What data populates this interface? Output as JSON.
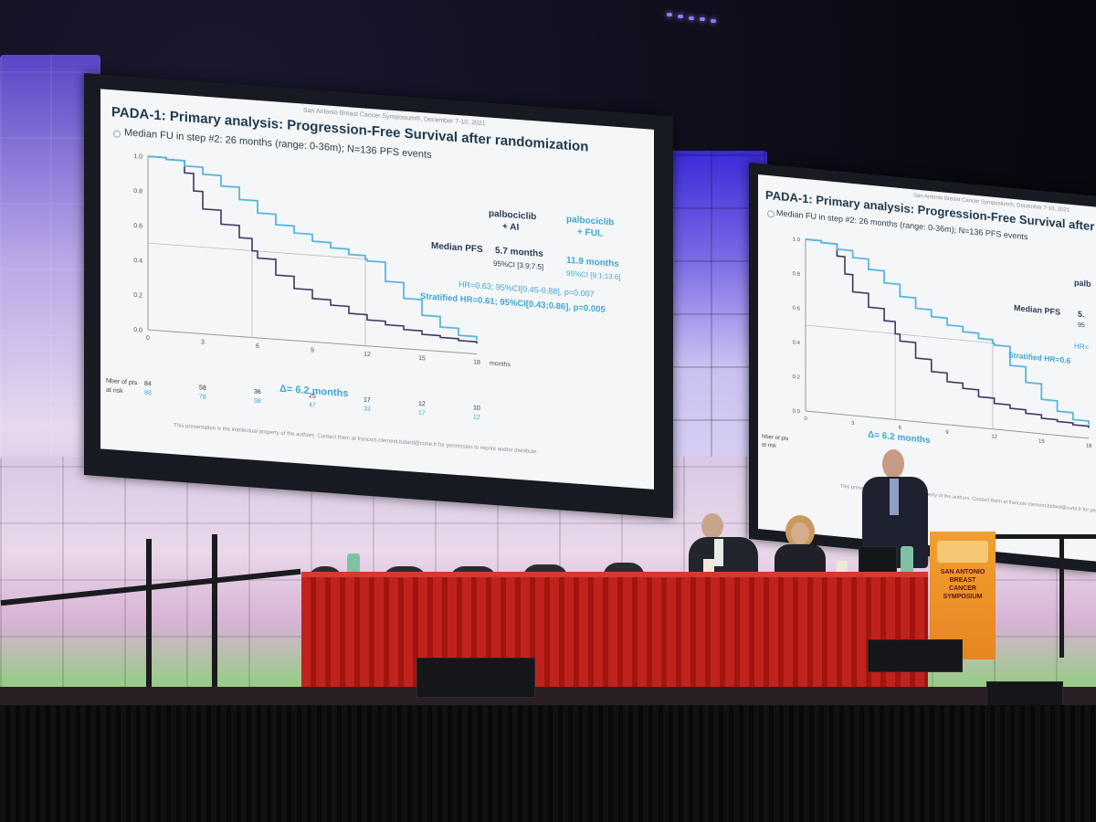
{
  "slide": {
    "header": "San Antonio Breast Cancer Symposium®, December 7-10, 2021",
    "title": "PADA-1: Primary analysis: Progression-Free Survival after randomization",
    "title_short": "PADA-1: Primary analysis: Progression-Free Survival after ra",
    "bullet": "Median FU in step #2: 26 months (range: 0-36m); N=136 PFS events",
    "col1_header": "palbociclib",
    "col1_header2": "+ AI",
    "col2_header": "palbociclib",
    "col2_header2": "+ FUL",
    "median_label": "Median PFS",
    "col1_median": "5.7 months",
    "col1_ci": "95%CI [3.9;7.5]",
    "col2_median": "11.9 months",
    "col2_ci": "95%CI [9.1;13.6]",
    "hr": "HR=0.63; 95%CI[0.45-0.88], p=0.007",
    "stratified_hr": "Stratified HR=0.61; 95%CI[0.43;0.86], p=0.005",
    "delta": "Δ= 6.2 months",
    "at_risk_label1": "Nber of pts",
    "at_risk_label2": "at risk",
    "footer": "This presentation is the intellectual property of the authors. Contact them at francois-clement.bidard@curie.fr for permission to reprint and/or distribute.",
    "right_partial": {
      "col_header": "palb",
      "median": "5.",
      "ci": "95",
      "hr": "HR=",
      "stratified": "Stratified HR=0.6"
    }
  },
  "chart_data": {
    "type": "line",
    "title": "",
    "xlabel": "months",
    "ylabel": "",
    "xlim": [
      0,
      18
    ],
    "ylim": [
      0,
      1.0
    ],
    "x_ticks": [
      "0",
      "3",
      "6",
      "9",
      "12",
      "15",
      "18"
    ],
    "y_ticks": [
      "0.0",
      "0.2",
      "0.4",
      "0.6",
      "0.8",
      "1.0"
    ],
    "reference_line_y": 0.5,
    "series": [
      {
        "name": "palbociclib + AI",
        "color": "#3b3863",
        "x": [
          0,
          1,
          2,
          2.5,
          3,
          4,
          5,
          5.7,
          6,
          7,
          8,
          9,
          10,
          11,
          12,
          13,
          14,
          15,
          16,
          17,
          18
        ],
        "y": [
          1.0,
          0.99,
          0.92,
          0.82,
          0.72,
          0.64,
          0.57,
          0.5,
          0.46,
          0.37,
          0.3,
          0.25,
          0.22,
          0.18,
          0.15,
          0.13,
          0.11,
          0.09,
          0.08,
          0.07,
          0.06
        ]
      },
      {
        "name": "palbociclib + FUL",
        "color": "#5ab5df",
        "x": [
          0,
          1,
          2,
          3,
          4,
          5,
          6,
          7,
          8,
          9,
          10,
          11,
          11.9,
          12,
          13,
          14,
          15,
          16,
          17,
          18
        ],
        "y": [
          1.0,
          0.99,
          0.96,
          0.92,
          0.86,
          0.79,
          0.72,
          0.66,
          0.62,
          0.58,
          0.55,
          0.52,
          0.5,
          0.49,
          0.38,
          0.29,
          0.2,
          0.14,
          0.1,
          0.08
        ]
      }
    ],
    "at_risk": {
      "times": [
        "0",
        "3",
        "6",
        "9",
        "12",
        "15",
        "18"
      ],
      "palbociclib_ai": [
        "84",
        "58",
        "36",
        "25",
        "17",
        "12",
        "10"
      ],
      "palbociclib_ful": [
        "88",
        "78",
        "58",
        "47",
        "33",
        "17",
        "12"
      ]
    }
  },
  "podium": {
    "text": "SAN ANTONIO BREAST CANCER SYMPOSIUM"
  },
  "colors": {
    "slide_bg": "#f4f6f7",
    "title": "#223a4d",
    "dark_series": "#3b3863",
    "light_series": "#5ab5df",
    "table": "#c0221d",
    "podium": "#e88520"
  }
}
